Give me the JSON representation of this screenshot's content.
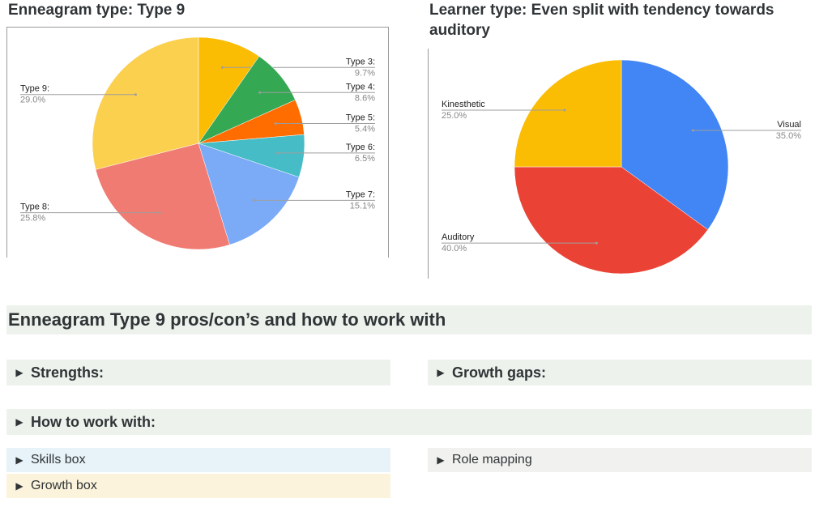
{
  "left_chart": {
    "heading": "Enneagram type: Type 9"
  },
  "right_chart": {
    "heading_line1": "Learner type: Even split with tendency towards",
    "heading_line2": "auditory"
  },
  "chart_data": [
    {
      "type": "pie",
      "title": "Enneagram type: Type 9",
      "slices": [
        {
          "label": "Type 3:",
          "value": 9.7,
          "pct": "9.7%",
          "color": "#fbbc04"
        },
        {
          "label": "Type 4:",
          "value": 8.6,
          "pct": "8.6%",
          "color": "#34a853"
        },
        {
          "label": "Type 5:",
          "value": 5.4,
          "pct": "5.4%",
          "color": "#ff6d01"
        },
        {
          "label": "Type 6:",
          "value": 6.5,
          "pct": "6.5%",
          "color": "#46bdc6"
        },
        {
          "label": "Type 7:",
          "value": 15.1,
          "pct": "15.1%",
          "color": "#7baaf7"
        },
        {
          "label": "Type 8:",
          "value": 25.8,
          "pct": "25.8%",
          "color": "#f07b72"
        },
        {
          "label": "Type 9:",
          "value": 29.0,
          "pct": "29.0%",
          "color": "#fcd04f"
        }
      ]
    },
    {
      "type": "pie",
      "title": "Learner type: Even split with tendency towards auditory",
      "slices": [
        {
          "label": "Visual",
          "value": 35.0,
          "pct": "35.0%",
          "color": "#4285f4"
        },
        {
          "label": "Auditory",
          "value": 40.0,
          "pct": "40.0%",
          "color": "#ea4335"
        },
        {
          "label": "Kinesthetic",
          "value": 25.0,
          "pct": "25.0%",
          "color": "#fbbc04"
        }
      ]
    }
  ],
  "section": {
    "title": "Enneagram Type 9 pros/con’s and how to work with"
  },
  "toggles": {
    "strengths": "Strengths:",
    "growth_gaps": "Growth gaps:",
    "how_to_work": "How to work with:",
    "skills_box": "Skills box",
    "role_mapping": "Role mapping",
    "growth_box": "Growth box",
    "arrow": "▶"
  },
  "colors": {
    "green_block": "#edf3ec",
    "blue_block": "#e7f3f8",
    "gray_block": "#f1f1ef",
    "yellow_block": "#fbf3db"
  }
}
